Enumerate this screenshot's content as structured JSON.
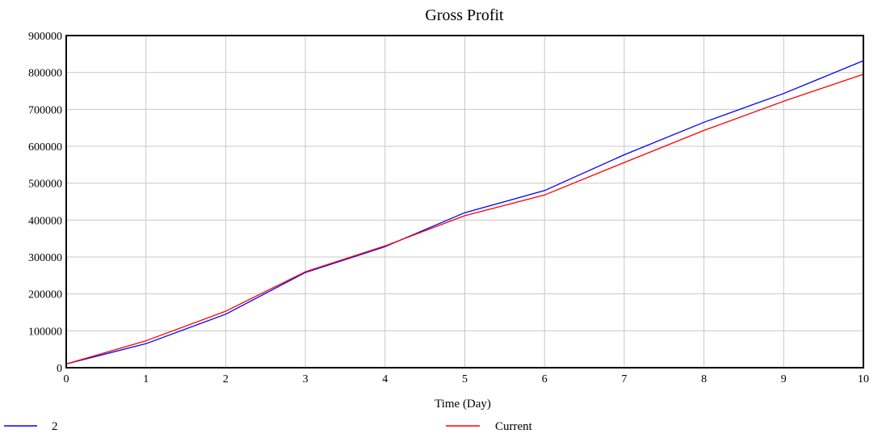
{
  "chart_data": {
    "type": "line",
    "title": "Gross Profit",
    "xlabel": "Time (Day)",
    "ylabel": "",
    "x": [
      0,
      1,
      2,
      3,
      4,
      5,
      6,
      7,
      8,
      9,
      10
    ],
    "xlim": [
      0,
      10
    ],
    "ylim": [
      0,
      900000
    ],
    "x_ticks": [
      "0",
      "1",
      "2",
      "3",
      "4",
      "5",
      "6",
      "7",
      "8",
      "9",
      "10"
    ],
    "y_ticks": [
      "0",
      "100000",
      "200000",
      "300000",
      "400000",
      "500000",
      "600000",
      "700000",
      "800000",
      "900000"
    ],
    "grid": true,
    "legend_placement": "bottom",
    "series": [
      {
        "name": "2",
        "color": "#0000ff",
        "values": [
          10000,
          65000,
          145000,
          258000,
          328000,
          420000,
          480000,
          577000,
          665000,
          743000,
          832000
        ]
      },
      {
        "name": "Current",
        "color": "#ff0000",
        "values": [
          10000,
          73000,
          153000,
          260000,
          330000,
          412000,
          468000,
          556000,
          643000,
          722000,
          795000
        ]
      }
    ]
  }
}
